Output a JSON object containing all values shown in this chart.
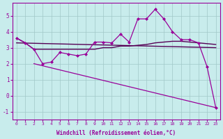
{
  "xlabel": "Windchill (Refroidissement éolien,°C)",
  "x_ticks": [
    0,
    1,
    2,
    3,
    4,
    5,
    6,
    7,
    8,
    9,
    10,
    11,
    12,
    13,
    14,
    15,
    16,
    17,
    18,
    19,
    20,
    21,
    22,
    23
  ],
  "ylim": [
    -1.5,
    5.8
  ],
  "xlim": [
    -0.5,
    23.5
  ],
  "yticks": [
    -1,
    0,
    1,
    2,
    3,
    4,
    5
  ],
  "bg_color": "#c8ecec",
  "line_color": "#990099",
  "line2_color": "#550055",
  "series1_x": [
    0,
    1,
    2,
    3,
    4,
    5,
    6,
    7,
    8,
    9,
    10,
    11,
    12,
    13,
    14,
    15,
    16,
    17,
    18,
    19,
    20,
    21,
    22,
    23
  ],
  "series1_y": [
    3.6,
    3.3,
    2.9,
    2.0,
    2.1,
    2.7,
    2.6,
    2.5,
    2.6,
    3.35,
    3.35,
    3.3,
    3.85,
    3.35,
    4.8,
    4.8,
    5.4,
    4.8,
    4.0,
    3.5,
    3.5,
    3.3,
    1.8,
    -0.75
  ],
  "series2_x": [
    0,
    23
  ],
  "series2_y": [
    3.3,
    3.0
  ],
  "series3_x": [
    2,
    23
  ],
  "series3_y": [
    2.0,
    -0.75
  ],
  "series4_x": [
    0,
    1,
    2,
    3,
    4,
    5,
    6,
    7,
    8,
    9,
    10,
    11,
    12,
    13,
    14,
    15,
    16,
    17,
    18,
    19,
    20,
    21,
    22,
    23
  ],
  "series4_y": [
    3.6,
    3.3,
    2.9,
    2.9,
    2.9,
    2.9,
    2.9,
    2.9,
    2.9,
    2.9,
    3.0,
    3.0,
    3.1,
    3.1,
    3.15,
    3.2,
    3.3,
    3.35,
    3.4,
    3.4,
    3.35,
    3.3,
    3.25,
    3.2
  ]
}
